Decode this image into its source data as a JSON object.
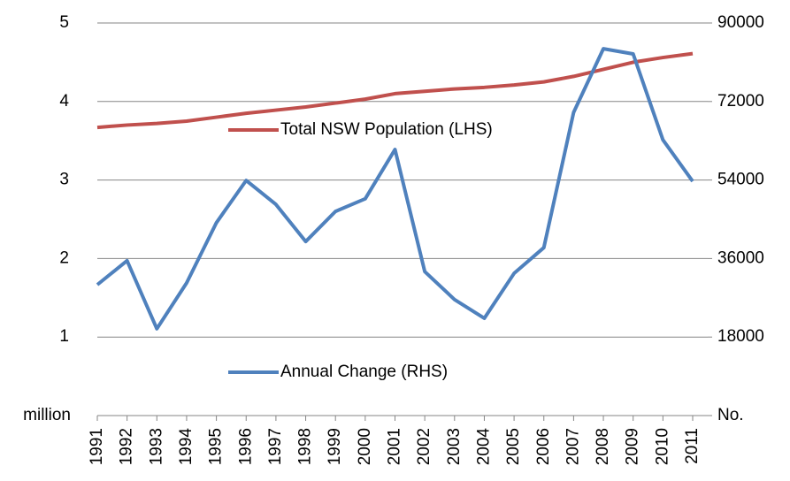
{
  "chart_data": {
    "type": "line",
    "categories": [
      "1991",
      "1992",
      "1993",
      "1994",
      "1995",
      "1996",
      "1997",
      "1998",
      "1999",
      "2000",
      "2001",
      "2002",
      "2003",
      "2004",
      "2005",
      "2006",
      "2007",
      "2008",
      "2009",
      "2010",
      "2011"
    ],
    "series": [
      {
        "name": "Total NSW Population (LHS)",
        "color": "#c0504d",
        "axis": "y",
        "values": [
          3.67,
          3.7,
          3.72,
          3.75,
          3.8,
          3.85,
          3.89,
          3.93,
          3.98,
          4.03,
          4.1,
          4.13,
          4.16,
          4.18,
          4.21,
          4.25,
          4.32,
          4.41,
          4.5,
          4.56,
          4.61
        ]
      },
      {
        "name": "Annual Change (RHS)",
        "color": "#4f81bd",
        "axis": "y2",
        "values": [
          30000,
          35500,
          19900,
          30400,
          44200,
          53900,
          48400,
          39900,
          46800,
          49700,
          61000,
          33000,
          26600,
          22300,
          32600,
          38500,
          69500,
          84100,
          82900,
          63200,
          53700
        ]
      }
    ],
    "ylim": [
      0,
      5
    ],
    "yticks": [
      {
        "value": 0,
        "label": "million"
      },
      1,
      2,
      3,
      4,
      5
    ],
    "y2lim": [
      0,
      90000
    ],
    "y2ticks": [
      {
        "value": 0,
        "label": "No."
      },
      18000,
      36000,
      54000,
      72000,
      90000
    ],
    "grid": true
  }
}
